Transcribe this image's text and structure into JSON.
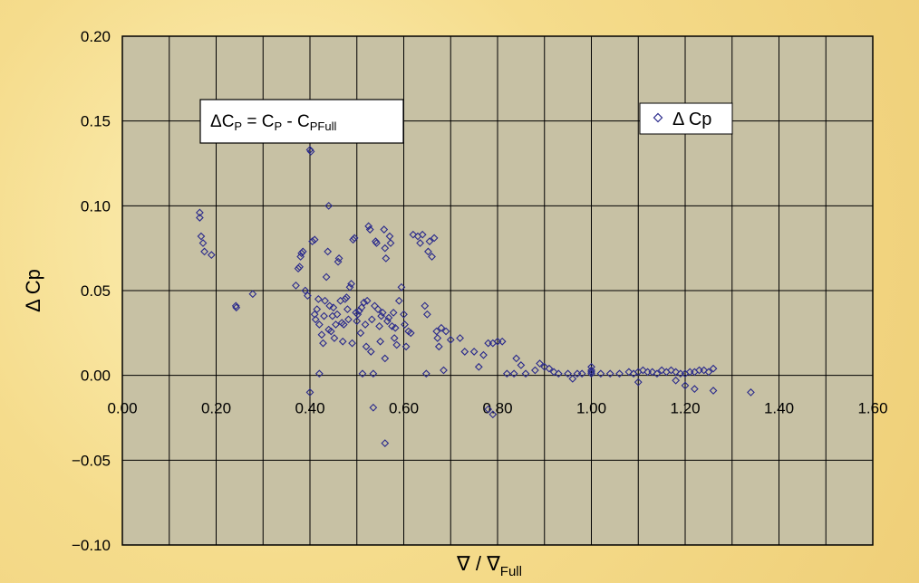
{
  "colors": {
    "plot_bg": "#c7c1a4",
    "grid": "#000000",
    "marker": "#2a2a8c",
    "page_bg": "#f5dc8c"
  },
  "chart_data": {
    "type": "scatter",
    "xlabel_main": "∇ / ∇",
    "xlabel_sub": "Full",
    "ylabel": "Δ Cp",
    "xlim": [
      0,
      1.6
    ],
    "ylim": [
      -0.1,
      0.2
    ],
    "x_ticks": [
      "0.00",
      "0.20",
      "0.40",
      "0.60",
      "0.80",
      "1.00",
      "1.20",
      "1.40",
      "1.60"
    ],
    "y_ticks": [
      "0.20",
      "0.15",
      "0.10",
      "0.05",
      "0.00",
      "−0.05",
      "−0.10"
    ],
    "x_tick_values": [
      0,
      0.2,
      0.4,
      0.6,
      0.8,
      1.0,
      1.2,
      1.4,
      1.6
    ],
    "y_tick_values": [
      0.2,
      0.15,
      0.1,
      0.05,
      0.0,
      -0.05,
      -0.1
    ],
    "grid": true,
    "legend_position": "top-right",
    "series": [
      {
        "name": "Δ Cp",
        "marker": "diamond",
        "points": [
          [
            0.165,
            0.096
          ],
          [
            0.165,
            0.093
          ],
          [
            0.168,
            0.082
          ],
          [
            0.172,
            0.078
          ],
          [
            0.175,
            0.073
          ],
          [
            0.19,
            0.071
          ],
          [
            0.242,
            0.041
          ],
          [
            0.243,
            0.04
          ],
          [
            0.278,
            0.048
          ],
          [
            0.37,
            0.053
          ],
          [
            0.375,
            0.063
          ],
          [
            0.378,
            0.064
          ],
          [
            0.38,
            0.07
          ],
          [
            0.382,
            0.072
          ],
          [
            0.385,
            0.073
          ],
          [
            0.39,
            0.05
          ],
          [
            0.395,
            0.047
          ],
          [
            0.4,
            0.133
          ],
          [
            0.402,
            0.132
          ],
          [
            0.405,
            0.079
          ],
          [
            0.41,
            0.08
          ],
          [
            0.4,
            -0.01
          ],
          [
            0.41,
            0.036
          ],
          [
            0.412,
            0.033
          ],
          [
            0.415,
            0.039
          ],
          [
            0.418,
            0.045
          ],
          [
            0.42,
            0.03
          ],
          [
            0.42,
            0.001
          ],
          [
            0.425,
            0.024
          ],
          [
            0.428,
            0.019
          ],
          [
            0.43,
            0.035
          ],
          [
            0.432,
            0.044
          ],
          [
            0.435,
            0.058
          ],
          [
            0.438,
            0.073
          ],
          [
            0.44,
            0.1
          ],
          [
            0.44,
            0.027
          ],
          [
            0.442,
            0.041
          ],
          [
            0.445,
            0.026
          ],
          [
            0.448,
            0.035
          ],
          [
            0.45,
            0.04
          ],
          [
            0.452,
            0.022
          ],
          [
            0.455,
            0.03
          ],
          [
            0.458,
            0.036
          ],
          [
            0.46,
            0.067
          ],
          [
            0.462,
            0.069
          ],
          [
            0.465,
            0.044
          ],
          [
            0.468,
            0.031
          ],
          [
            0.47,
            0.02
          ],
          [
            0.472,
            0.03
          ],
          [
            0.475,
            0.045
          ],
          [
            0.478,
            0.046
          ],
          [
            0.48,
            0.039
          ],
          [
            0.482,
            0.033
          ],
          [
            0.485,
            0.052
          ],
          [
            0.488,
            0.054
          ],
          [
            0.49,
            0.019
          ],
          [
            0.492,
            0.08
          ],
          [
            0.495,
            0.081
          ],
          [
            0.498,
            0.037
          ],
          [
            0.5,
            0.032
          ],
          [
            0.502,
            0.036
          ],
          [
            0.505,
            0.038
          ],
          [
            0.508,
            0.025
          ],
          [
            0.51,
            0.04
          ],
          [
            0.512,
            0.001
          ],
          [
            0.515,
            0.043
          ],
          [
            0.518,
            0.03
          ],
          [
            0.52,
            0.017
          ],
          [
            0.522,
            0.044
          ],
          [
            0.525,
            0.088
          ],
          [
            0.528,
            0.086
          ],
          [
            0.53,
            0.014
          ],
          [
            0.532,
            0.033
          ],
          [
            0.535,
            0.001
          ],
          [
            0.535,
            -0.019
          ],
          [
            0.538,
            0.041
          ],
          [
            0.54,
            0.079
          ],
          [
            0.542,
            0.078
          ],
          [
            0.545,
            0.039
          ],
          [
            0.548,
            0.029
          ],
          [
            0.55,
            0.02
          ],
          [
            0.552,
            0.035
          ],
          [
            0.555,
            0.037
          ],
          [
            0.558,
            0.086
          ],
          [
            0.56,
            0.075
          ],
          [
            0.562,
            0.069
          ],
          [
            0.56,
            0.01
          ],
          [
            0.56,
            -0.04
          ],
          [
            0.565,
            0.032
          ],
          [
            0.568,
            0.034
          ],
          [
            0.57,
            0.082
          ],
          [
            0.572,
            0.078
          ],
          [
            0.575,
            0.029
          ],
          [
            0.578,
            0.037
          ],
          [
            0.58,
            0.022
          ],
          [
            0.582,
            0.028
          ],
          [
            0.585,
            0.018
          ],
          [
            0.59,
            0.044
          ],
          [
            0.595,
            0.052
          ],
          [
            0.6,
            0.036
          ],
          [
            0.602,
            0.03
          ],
          [
            0.605,
            0.017
          ],
          [
            0.61,
            0.026
          ],
          [
            0.615,
            0.025
          ],
          [
            0.62,
            0.083
          ],
          [
            0.63,
            0.082
          ],
          [
            0.635,
            0.078
          ],
          [
            0.64,
            0.083
          ],
          [
            0.645,
            0.041
          ],
          [
            0.648,
            0.001
          ],
          [
            0.65,
            0.036
          ],
          [
            0.652,
            0.073
          ],
          [
            0.655,
            0.079
          ],
          [
            0.66,
            0.07
          ],
          [
            0.665,
            0.081
          ],
          [
            0.67,
            0.026
          ],
          [
            0.672,
            0.022
          ],
          [
            0.675,
            0.017
          ],
          [
            0.68,
            0.028
          ],
          [
            0.685,
            0.003
          ],
          [
            0.69,
            0.026
          ],
          [
            0.7,
            0.021
          ],
          [
            0.72,
            0.022
          ],
          [
            0.73,
            0.014
          ],
          [
            0.75,
            0.014
          ],
          [
            0.77,
            0.012
          ],
          [
            0.78,
            0.019
          ],
          [
            0.79,
            0.019
          ],
          [
            0.8,
            0.02
          ],
          [
            0.81,
            0.02
          ],
          [
            0.79,
            -0.023
          ],
          [
            0.78,
            -0.02
          ],
          [
            0.76,
            0.005
          ],
          [
            0.82,
            0.001
          ],
          [
            0.835,
            0.001
          ],
          [
            0.84,
            0.01
          ],
          [
            0.85,
            0.006
          ],
          [
            0.86,
            0.001
          ],
          [
            0.88,
            0.003
          ],
          [
            0.89,
            0.007
          ],
          [
            0.9,
            0.005
          ],
          [
            0.91,
            0.004
          ],
          [
            0.92,
            0.002
          ],
          [
            0.93,
            0.001
          ],
          [
            0.95,
            0.001
          ],
          [
            0.96,
            -0.002
          ],
          [
            0.97,
            0.001
          ],
          [
            0.98,
            0.001
          ],
          [
            1.0,
            0.005
          ],
          [
            1.0,
            0.003
          ],
          [
            1.0,
            0.002
          ],
          [
            1.0,
            0.001
          ],
          [
            1.02,
            0.001
          ],
          [
            1.04,
            0.001
          ],
          [
            1.06,
            0.001
          ],
          [
            1.08,
            0.002
          ],
          [
            1.09,
            0.001
          ],
          [
            1.1,
            0.002
          ],
          [
            1.11,
            0.003
          ],
          [
            1.12,
            0.002
          ],
          [
            1.13,
            0.002
          ],
          [
            1.14,
            0.001
          ],
          [
            1.15,
            0.003
          ],
          [
            1.16,
            0.002
          ],
          [
            1.17,
            0.003
          ],
          [
            1.18,
            0.002
          ],
          [
            1.19,
            0.001
          ],
          [
            1.2,
            0.001
          ],
          [
            1.21,
            0.002
          ],
          [
            1.22,
            0.002
          ],
          [
            1.23,
            0.003
          ],
          [
            1.24,
            0.003
          ],
          [
            1.25,
            0.002
          ],
          [
            1.26,
            0.004
          ],
          [
            1.2,
            -0.006
          ],
          [
            1.22,
            -0.008
          ],
          [
            1.26,
            -0.009
          ],
          [
            1.18,
            -0.003
          ],
          [
            1.1,
            -0.004
          ],
          [
            1.34,
            -0.01
          ]
        ]
      }
    ],
    "annotation_box": {
      "main": "ΔC",
      "sub1": "P",
      "mid": " = C",
      "sub2": "P",
      "mid2": " - C",
      "sub3": "PFull"
    }
  }
}
